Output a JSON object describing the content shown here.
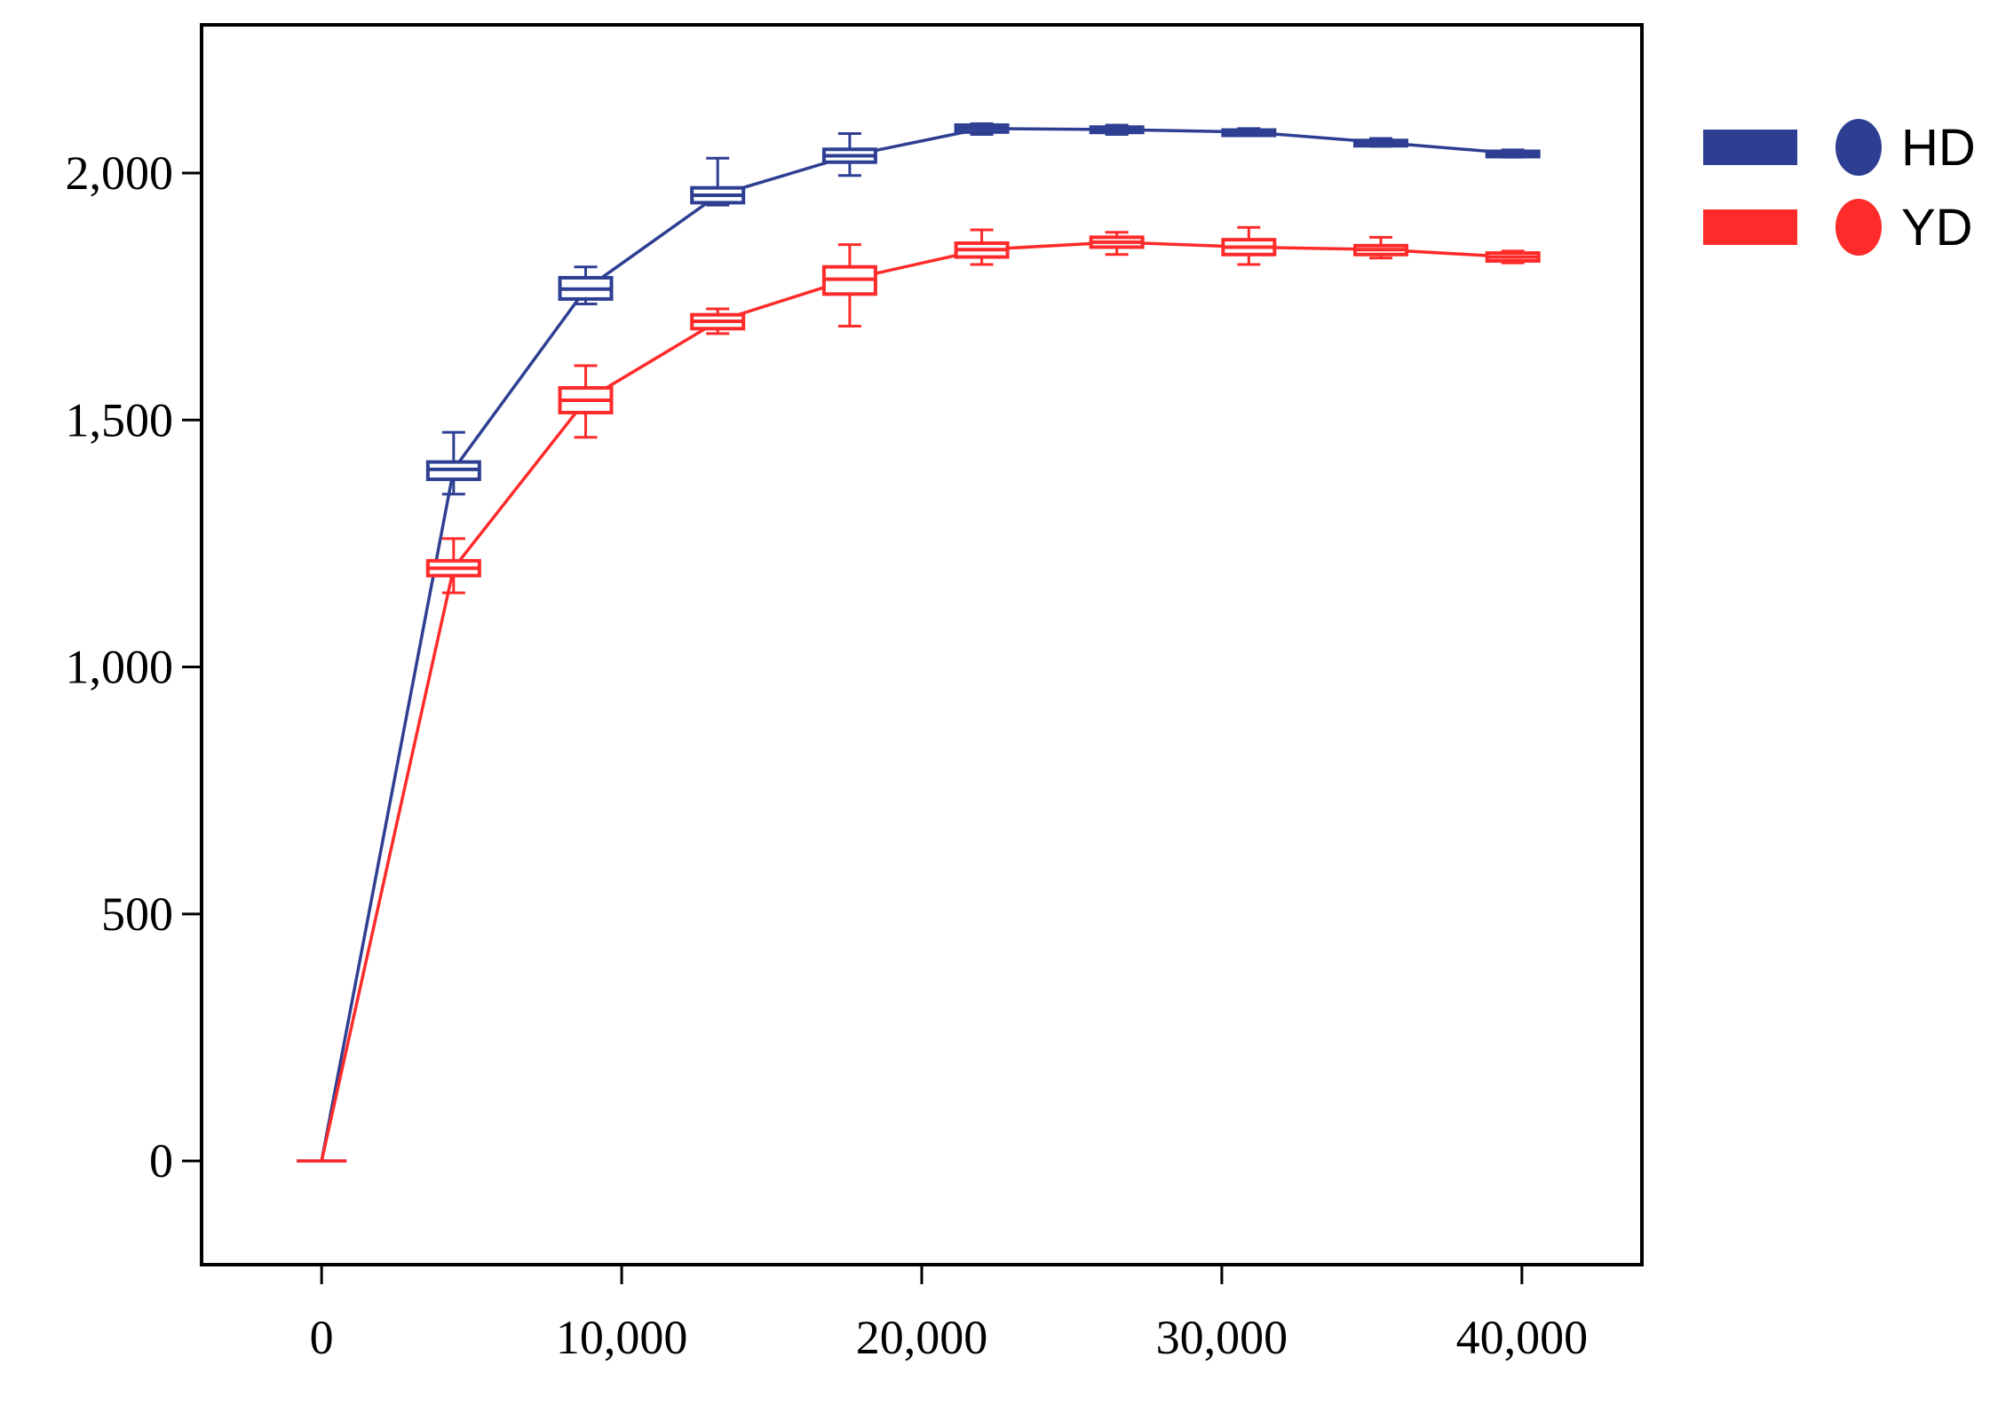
{
  "chart_data": {
    "type": "line",
    "title": "",
    "xlabel": "",
    "ylabel": "",
    "xlim": [
      -4000,
      44000
    ],
    "ylim": [
      -210,
      2300
    ],
    "xticks": [
      0,
      10000,
      20000,
      30000,
      40000
    ],
    "xtick_labels": [
      "0",
      "10,000",
      "20,000",
      "30,000",
      "40,000"
    ],
    "yticks": [
      0,
      500,
      1000,
      1500,
      2000
    ],
    "ytick_labels": [
      "0",
      "500",
      "1,000",
      "1,500",
      "2,000"
    ],
    "grid": false,
    "legend_position": "outside-right-top",
    "series": [
      {
        "name": "HD",
        "color": "#2e3f93",
        "x": [
          0,
          4400,
          8800,
          13200,
          17600,
          22000,
          26500,
          30900,
          35300,
          39700
        ],
        "median": [
          0,
          1400,
          1765,
          1955,
          2035,
          2090,
          2088,
          2083,
          2062,
          2040
        ],
        "q1": [
          0,
          1380,
          1745,
          1940,
          2022,
          2083,
          2083,
          2079,
          2058,
          2036
        ],
        "q3": [
          0,
          1415,
          1788,
          1970,
          2048,
          2097,
          2093,
          2087,
          2066,
          2044
        ],
        "whisker_low": [
          0,
          1350,
          1735,
          1935,
          1995,
          2078,
          2078,
          2076,
          2054,
          2032
        ],
        "whisker_high": [
          0,
          1475,
          1810,
          2030,
          2080,
          2100,
          2097,
          2090,
          2070,
          2047
        ]
      },
      {
        "name": "YD",
        "color": "#ff2a2a",
        "x": [
          0,
          4400,
          8800,
          13200,
          17600,
          22000,
          26500,
          30900,
          35300,
          39700
        ],
        "median": [
          0,
          1200,
          1540,
          1700,
          1785,
          1845,
          1860,
          1850,
          1845,
          1830
        ],
        "q1": [
          0,
          1185,
          1515,
          1685,
          1755,
          1830,
          1850,
          1835,
          1835,
          1822
        ],
        "q3": [
          0,
          1215,
          1565,
          1713,
          1810,
          1858,
          1870,
          1865,
          1853,
          1838
        ],
        "whisker_low": [
          0,
          1150,
          1465,
          1675,
          1690,
          1815,
          1835,
          1815,
          1828,
          1818
        ],
        "whisker_high": [
          0,
          1260,
          1610,
          1725,
          1855,
          1885,
          1880,
          1890,
          1870,
          1842
        ]
      }
    ]
  }
}
